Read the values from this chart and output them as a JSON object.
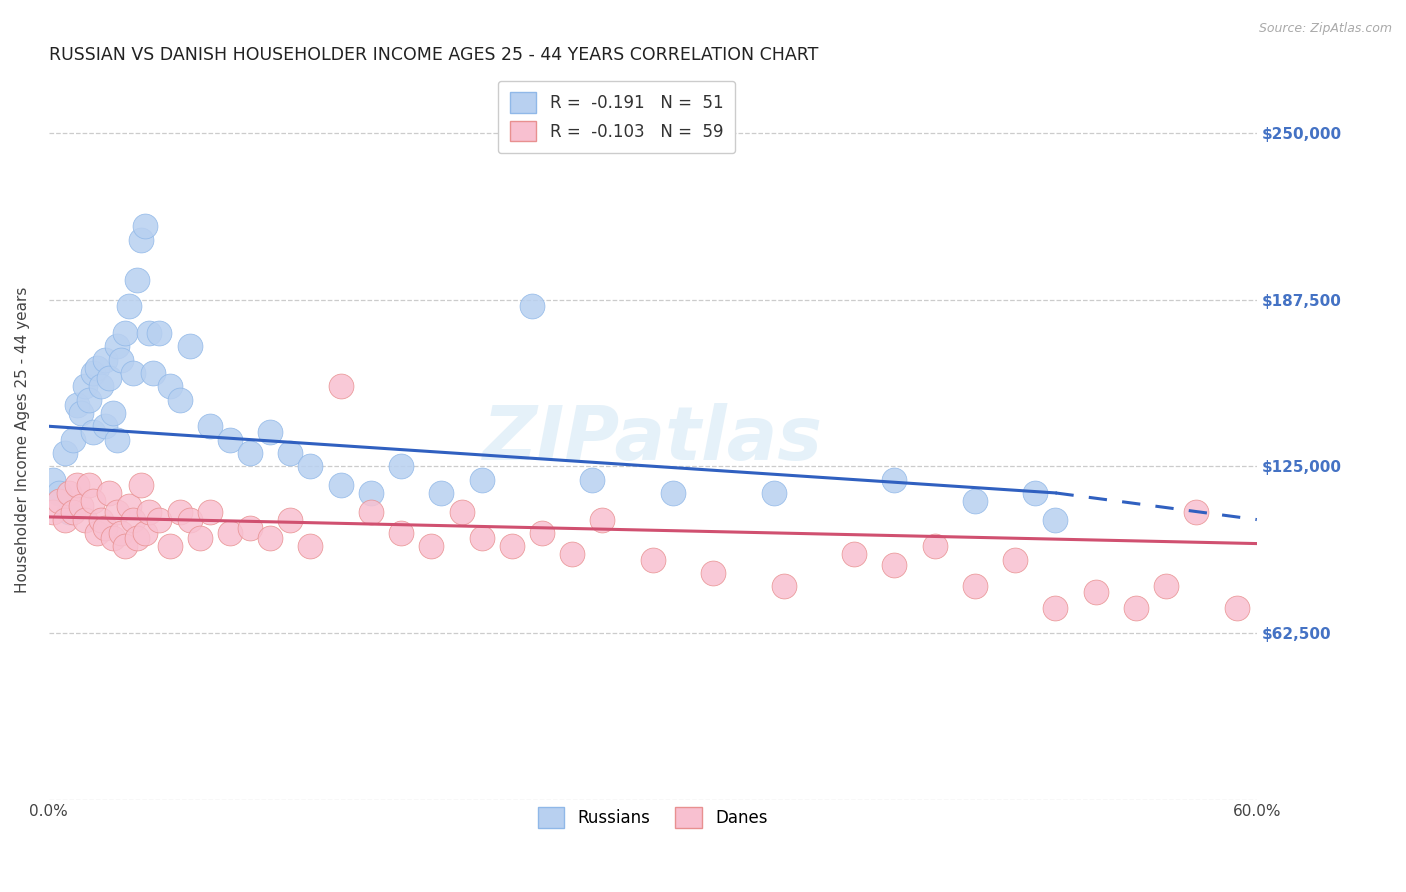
{
  "title": "RUSSIAN VS DANISH HOUSEHOLDER INCOME AGES 25 - 44 YEARS CORRELATION CHART",
  "source": "Source: ZipAtlas.com",
  "ylabel": "Householder Income Ages 25 - 44 years",
  "xlim": [
    0.0,
    0.6
  ],
  "ylim": [
    0,
    270000
  ],
  "yticks": [
    0,
    62500,
    125000,
    187500,
    250000
  ],
  "ytick_labels": [
    "",
    "$62,500",
    "$125,000",
    "$187,500",
    "$250,000"
  ],
  "xtick_labels": [
    "0.0%",
    "",
    "",
    "",
    "",
    "",
    "",
    "",
    "",
    "",
    "",
    "",
    "60.0%"
  ],
  "xticks": [
    0.0,
    0.05,
    0.1,
    0.15,
    0.2,
    0.25,
    0.3,
    0.35,
    0.4,
    0.45,
    0.5,
    0.55,
    0.6
  ],
  "legend_r_blue": "-0.191",
  "legend_n_blue": "51",
  "legend_r_pink": "-0.103",
  "legend_n_pink": "59",
  "watermark": "ZIPatlas",
  "title_color": "#222222",
  "grid_color": "#cccccc",
  "blue_line_color": "#3060c0",
  "pink_line_color": "#d05070",
  "blue_dot_color": "#b8d0f0",
  "blue_dot_edge": "#90b8e8",
  "pink_dot_color": "#f8c0d0",
  "pink_dot_edge": "#e89090",
  "right_label_color": "#4472c4",
  "russians_x": [
    0.002,
    0.005,
    0.008,
    0.01,
    0.012,
    0.014,
    0.016,
    0.018,
    0.02,
    0.022,
    0.022,
    0.024,
    0.026,
    0.028,
    0.028,
    0.03,
    0.032,
    0.034,
    0.034,
    0.036,
    0.038,
    0.04,
    0.042,
    0.044,
    0.046,
    0.048,
    0.05,
    0.052,
    0.055,
    0.06,
    0.065,
    0.07,
    0.08,
    0.09,
    0.1,
    0.11,
    0.12,
    0.13,
    0.145,
    0.16,
    0.175,
    0.195,
    0.215,
    0.24,
    0.27,
    0.31,
    0.36,
    0.42,
    0.46,
    0.49,
    0.5
  ],
  "russians_y": [
    120000,
    115000,
    130000,
    108000,
    135000,
    148000,
    145000,
    155000,
    150000,
    160000,
    138000,
    162000,
    155000,
    165000,
    140000,
    158000,
    145000,
    170000,
    135000,
    165000,
    175000,
    185000,
    160000,
    195000,
    210000,
    215000,
    175000,
    160000,
    175000,
    155000,
    150000,
    170000,
    140000,
    135000,
    130000,
    138000,
    130000,
    125000,
    118000,
    115000,
    125000,
    115000,
    120000,
    185000,
    120000,
    115000,
    115000,
    120000,
    112000,
    115000,
    105000
  ],
  "danes_x": [
    0.002,
    0.005,
    0.008,
    0.01,
    0.012,
    0.014,
    0.016,
    0.018,
    0.02,
    0.022,
    0.024,
    0.026,
    0.028,
    0.03,
    0.032,
    0.034,
    0.036,
    0.038,
    0.04,
    0.042,
    0.044,
    0.046,
    0.048,
    0.05,
    0.055,
    0.06,
    0.065,
    0.07,
    0.075,
    0.08,
    0.09,
    0.1,
    0.11,
    0.12,
    0.13,
    0.145,
    0.16,
    0.175,
    0.19,
    0.205,
    0.215,
    0.23,
    0.245,
    0.26,
    0.275,
    0.3,
    0.33,
    0.365,
    0.4,
    0.42,
    0.44,
    0.46,
    0.48,
    0.5,
    0.52,
    0.54,
    0.555,
    0.57,
    0.59
  ],
  "danes_y": [
    108000,
    112000,
    105000,
    115000,
    108000,
    118000,
    110000,
    105000,
    118000,
    112000,
    100000,
    105000,
    102000,
    115000,
    98000,
    108000,
    100000,
    95000,
    110000,
    105000,
    98000,
    118000,
    100000,
    108000,
    105000,
    95000,
    108000,
    105000,
    98000,
    108000,
    100000,
    102000,
    98000,
    105000,
    95000,
    155000,
    108000,
    100000,
    95000,
    108000,
    98000,
    95000,
    100000,
    92000,
    105000,
    90000,
    85000,
    80000,
    92000,
    88000,
    95000,
    80000,
    90000,
    72000,
    78000,
    72000,
    80000,
    108000,
    72000
  ]
}
